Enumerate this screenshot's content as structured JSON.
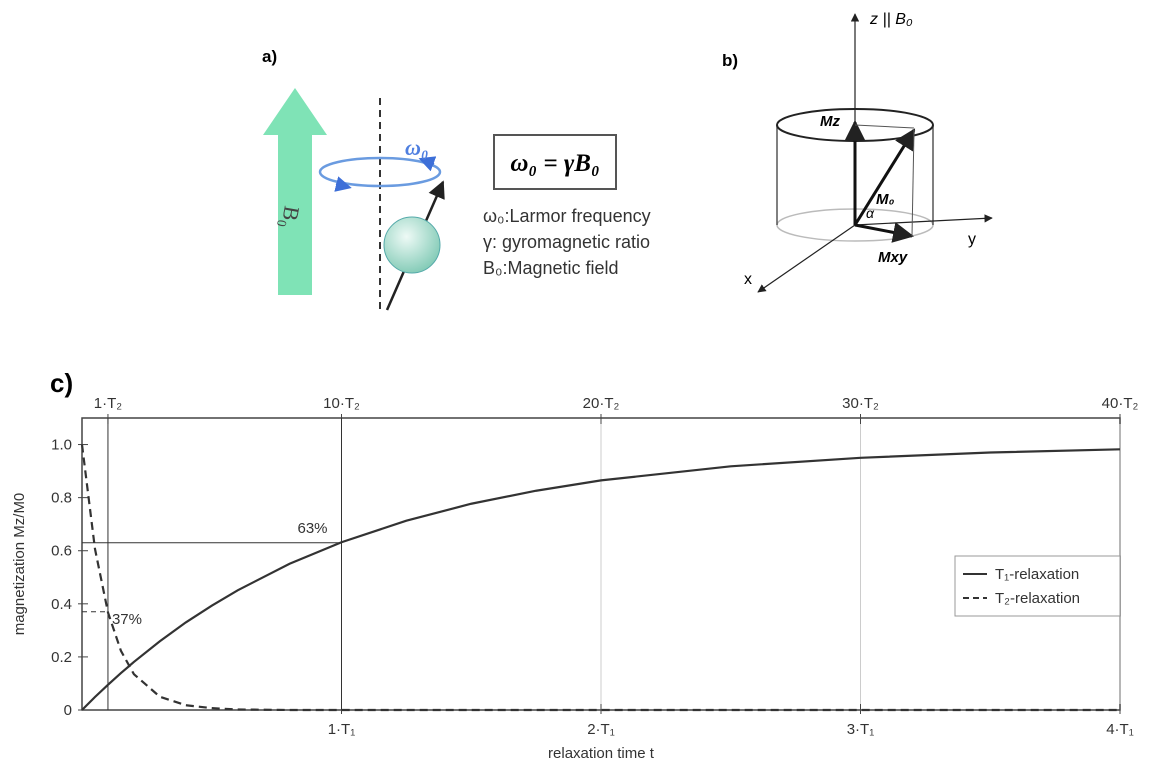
{
  "diagram_a": {
    "label": "a)",
    "arrow_label": "B₀",
    "rotation_label": "ω₀",
    "equation": "ω₀ = γB₀",
    "legend": [
      "ω₀:Larmor frequency",
      "γ: gyromagnetic ratio",
      "B₀:Magnetic field"
    ]
  },
  "diagram_b": {
    "label": "b)",
    "z_axis": "z || B₀",
    "y_axis": "y",
    "x_axis": "x",
    "mz": "Mz",
    "m0": "M₀",
    "mxy": "Mxy",
    "angle": "α"
  },
  "chart_data": {
    "type": "line",
    "panel_label": "c)",
    "x_label": "relaxation time t",
    "y_label": "magnetization Mz/M0",
    "x": [
      0,
      0.05,
      0.1,
      0.15,
      0.2,
      0.3,
      0.4,
      0.5,
      0.6,
      0.8,
      1,
      1.25,
      1.5,
      1.75,
      2,
      2.5,
      3,
      3.5,
      4
    ],
    "series": [
      {
        "name": "T₁-relaxation",
        "color": "#333333",
        "dash": "solid",
        "values": [
          0,
          0.049,
          0.095,
          0.139,
          0.181,
          0.259,
          0.33,
          0.393,
          0.451,
          0.551,
          0.632,
          0.713,
          0.777,
          0.826,
          0.865,
          0.918,
          0.95,
          0.97,
          0.982
        ]
      },
      {
        "name": "T₂-relaxation",
        "color": "#333333",
        "dash": "dashed",
        "values": [
          1,
          0.607,
          0.368,
          0.223,
          0.135,
          0.05,
          0.018,
          0.007,
          0.002,
          0,
          0,
          0,
          0,
          0,
          0,
          0,
          0,
          0,
          0
        ]
      }
    ],
    "xlim": [
      0,
      4
    ],
    "ylim": [
      0,
      1.1
    ],
    "xticks": [
      {
        "value": 1,
        "label": "1·T₁"
      },
      {
        "value": 2,
        "label": "2·T₁"
      },
      {
        "value": 3,
        "label": "3·T₁"
      },
      {
        "value": 4,
        "label": "4·T₁"
      }
    ],
    "x2lim": [
      0,
      40
    ],
    "x2ticks": [
      {
        "value": 1,
        "label": "1·T₂"
      },
      {
        "value": 10,
        "label": "10·T₂"
      },
      {
        "value": 20,
        "label": "20·T₂"
      },
      {
        "value": 30,
        "label": "30·T₂"
      },
      {
        "value": 40,
        "label": "40·T₂"
      }
    ],
    "yticks": [
      0,
      0.2,
      0.4,
      0.6,
      0.8,
      {
        "value": 1,
        "label": "1.0"
      }
    ],
    "grid": true,
    "legend_position": "right",
    "annotations": [
      {
        "text": "63%",
        "x": 1,
        "y": 0.63
      },
      {
        "text": "37%",
        "x": 0.1,
        "y": 0.37
      }
    ]
  }
}
